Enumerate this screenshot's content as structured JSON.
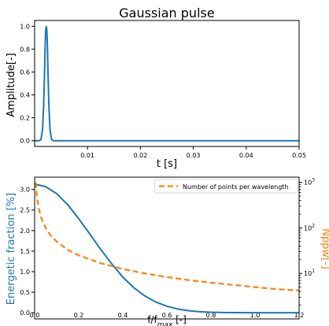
{
  "figure": {
    "colors": {
      "blue": "#1f77b4",
      "orange": "#ff7f0e",
      "axis": "#000000",
      "background": "#ffffff"
    }
  },
  "chart_data": [
    {
      "type": "line",
      "title": "Gaussian pulse",
      "xlabel": "t [s]",
      "ylabel": "Amplitude[-]",
      "xlim": [
        0,
        0.05
      ],
      "ylim": [
        -0.05,
        1.05
      ],
      "grid": false,
      "x_ticks": [
        0.01,
        0.02,
        0.03,
        0.04,
        0.05
      ],
      "x_tick_labels": [
        "0.01",
        "0.02",
        "0.03",
        "0.04",
        "0.05"
      ],
      "y_ticks": [
        0.0,
        0.2,
        0.4,
        0.6,
        0.8,
        1.0
      ],
      "y_tick_labels": [
        "0.0",
        "0.2",
        "0.4",
        "0.6",
        "0.8",
        "1.0"
      ],
      "series": [
        {
          "color": "#1f77b4",
          "x": [
            0,
            0.0008,
            0.0012,
            0.0015,
            0.0017,
            0.0019,
            0.002,
            0.0021,
            0.0022,
            0.0023,
            0.0024,
            0.0025,
            0.0027,
            0.0029,
            0.0032,
            0.0036,
            0.005,
            0.05
          ],
          "y": [
            0,
            0.0,
            0.01,
            0.1,
            0.3,
            0.65,
            0.85,
            0.97,
            1.0,
            0.97,
            0.85,
            0.65,
            0.3,
            0.1,
            0.01,
            0.0,
            0.0,
            0.0
          ]
        }
      ]
    },
    {
      "type": "line",
      "xlabel": "f/f_max [-]",
      "ylabel": "Energetic fraction [%]",
      "ylabel_right": "Nppw[-]",
      "xlim": [
        0,
        1.2
      ],
      "ylim": [
        -0.15,
        3.3
      ],
      "y_right_scale": "log",
      "y_right_lim": [
        1.0,
        1300
      ],
      "legend": "top-right",
      "grid": false,
      "x_ticks": [
        0.0,
        0.2,
        0.4,
        0.6,
        0.8,
        1.0,
        1.2
      ],
      "x_tick_labels": [
        "0.0",
        "0.2",
        "0.4",
        "0.6",
        "0.8",
        "1.0",
        "1.2"
      ],
      "y_ticks": [
        0.0,
        0.5,
        1.0,
        1.5,
        2.0,
        2.5,
        3.0
      ],
      "y_tick_labels": [
        "0.0",
        "0.5",
        "1.0",
        "1.5",
        "2.0",
        "2.5",
        "3.0"
      ],
      "y_right_ticks": [
        10,
        100,
        1000
      ],
      "series": [
        {
          "color": "#1f77b4",
          "style": "solid",
          "axis": "left",
          "x": [
            0.0,
            0.05,
            0.1,
            0.15,
            0.2,
            0.25,
            0.3,
            0.35,
            0.4,
            0.45,
            0.5,
            0.55,
            0.6,
            0.65,
            0.7,
            0.75,
            0.8,
            0.85,
            0.9,
            1.0,
            1.1,
            1.2
          ],
          "y": [
            3.13,
            3.07,
            2.9,
            2.63,
            2.29,
            1.92,
            1.54,
            1.19,
            0.87,
            0.61,
            0.41,
            0.26,
            0.16,
            0.09,
            0.05,
            0.025,
            0.012,
            0.006,
            0.003,
            0.001,
            0.0,
            0.0
          ]
        },
        {
          "name": "Number of points per wavelength",
          "color": "#ff7f0e",
          "style": "dashed",
          "axis": "right",
          "x": [
            0.005,
            0.01,
            0.02,
            0.03,
            0.05,
            0.07,
            0.1,
            0.15,
            0.2,
            0.3,
            0.4,
            0.5,
            0.6,
            0.7,
            0.8,
            0.9,
            1.0,
            1.1,
            1.2
          ],
          "y": [
            1000,
            500,
            250,
            167,
            100,
            71,
            50,
            33,
            25,
            16.7,
            12.5,
            10,
            8.3,
            7.1,
            6.25,
            5.6,
            5.0,
            4.5,
            4.2
          ]
        }
      ]
    }
  ]
}
